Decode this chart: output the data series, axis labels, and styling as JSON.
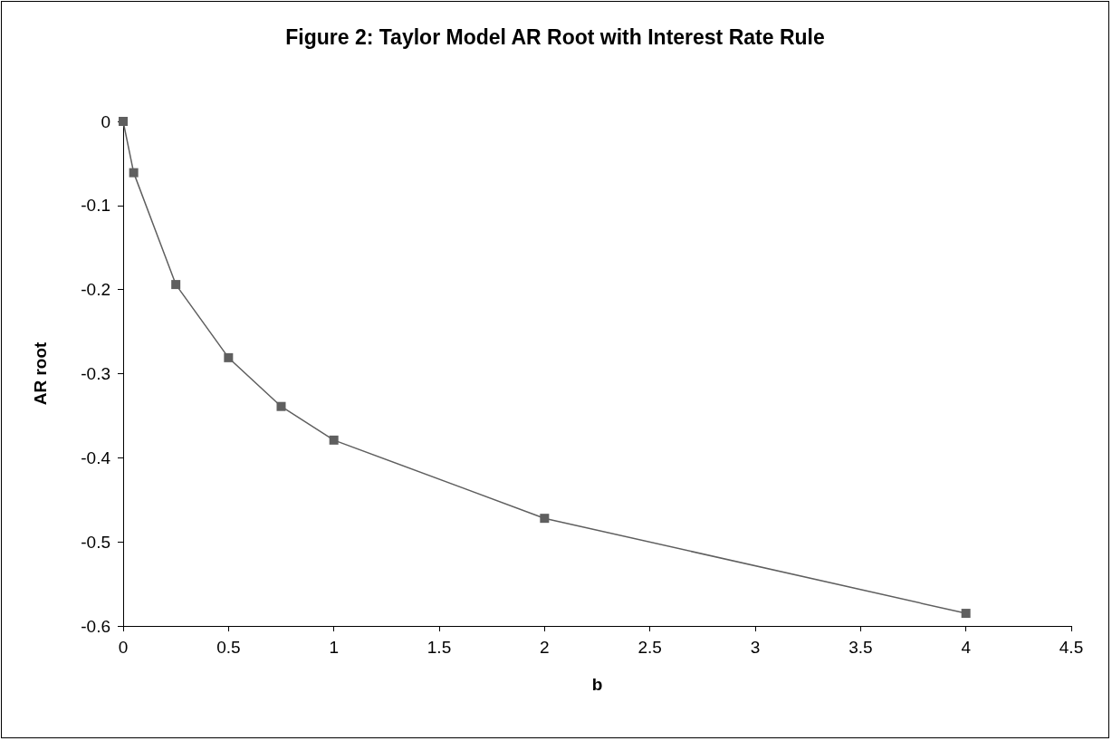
{
  "chart_data": {
    "type": "line",
    "title": "Figure 2: Taylor Model AR Root with Interest Rate Rule",
    "xlabel": "b",
    "ylabel": "AR root",
    "x": [
      0,
      0.05,
      0.25,
      0.5,
      0.75,
      1,
      2,
      4
    ],
    "series": [
      {
        "color": "#5f5f5f",
        "values": [
          0,
          -0.061,
          -0.194,
          -0.281,
          -0.339,
          -0.379,
          -0.472,
          -0.585
        ]
      }
    ],
    "xlim": [
      0,
      4.5
    ],
    "xticks": [
      0,
      0.5,
      1,
      1.5,
      2,
      2.5,
      3,
      3.5,
      4,
      4.5
    ],
    "ylim": [
      -0.6,
      0
    ],
    "yticks": [
      -0.6,
      -0.5,
      -0.4,
      -0.3,
      -0.2,
      -0.1,
      0
    ],
    "marker": "square",
    "line_style": "solid"
  }
}
